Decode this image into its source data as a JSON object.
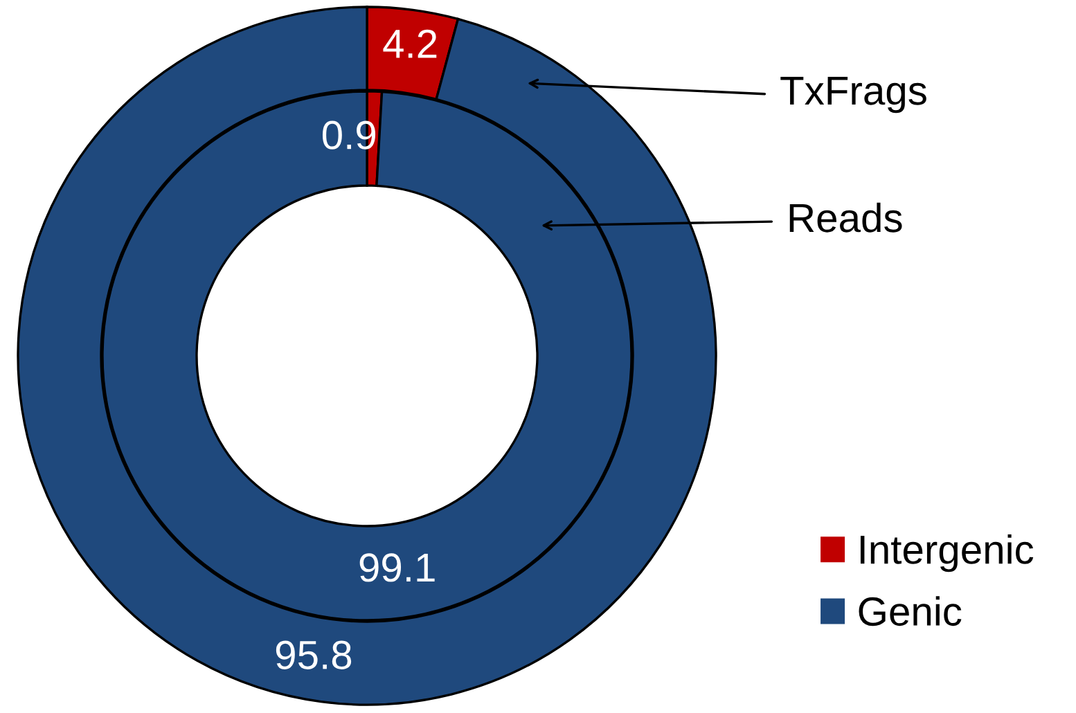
{
  "chart_data": {
    "type": "donut",
    "categories": [
      "Intergenic",
      "Genic"
    ],
    "colors": [
      "#c00000",
      "#1f497d"
    ],
    "series": [
      {
        "name": "Reads",
        "values": [
          0.9,
          99.1
        ]
      },
      {
        "name": "TxFrags",
        "values": [
          4.2,
          95.8
        ]
      }
    ],
    "data_labels": true,
    "legend": "bottom right"
  }
}
